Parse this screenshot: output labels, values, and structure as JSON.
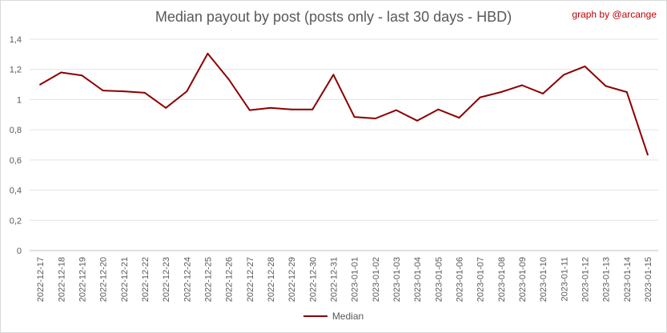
{
  "chart_data": {
    "type": "line",
    "title": "Median payout by post (posts only - last 30 days - HBD)",
    "credit": "graph by @arcange",
    "xlabel": "",
    "ylabel": "",
    "ylim": [
      0,
      1.4
    ],
    "yticks": [
      "0",
      "0,2",
      "0,4",
      "0,6",
      "0,8",
      "1",
      "1,2",
      "1,4"
    ],
    "grid": true,
    "legend_position": "bottom",
    "categories": [
      "2022-12-17",
      "2022-12-18",
      "2022-12-19",
      "2022-12-20",
      "2022-12-21",
      "2022-12-22",
      "2022-12-23",
      "2022-12-24",
      "2022-12-25",
      "2022-12-26",
      "2022-12-27",
      "2022-12-28",
      "2022-12-29",
      "2022-12-30",
      "2022-12-31",
      "2023-01-01",
      "2023-01-02",
      "2023-01-03",
      "2023-01-04",
      "2023-01-05",
      "2023-01-06",
      "2023-01-07",
      "2023-01-08",
      "2023-01-09",
      "2023-01-10",
      "2023-01-11",
      "2023-01-12",
      "2023-01-13",
      "2023-01-14",
      "2023-01-15"
    ],
    "series": [
      {
        "name": "Median",
        "color": "#8b0000",
        "values": [
          1.1,
          1.18,
          1.16,
          1.06,
          1.055,
          1.045,
          0.945,
          1.055,
          1.305,
          1.135,
          0.93,
          0.945,
          0.935,
          0.935,
          1.165,
          0.885,
          0.875,
          0.93,
          0.86,
          0.935,
          0.88,
          1.015,
          1.05,
          1.095,
          1.04,
          1.165,
          1.22,
          1.09,
          1.05,
          0.635
        ]
      }
    ]
  }
}
